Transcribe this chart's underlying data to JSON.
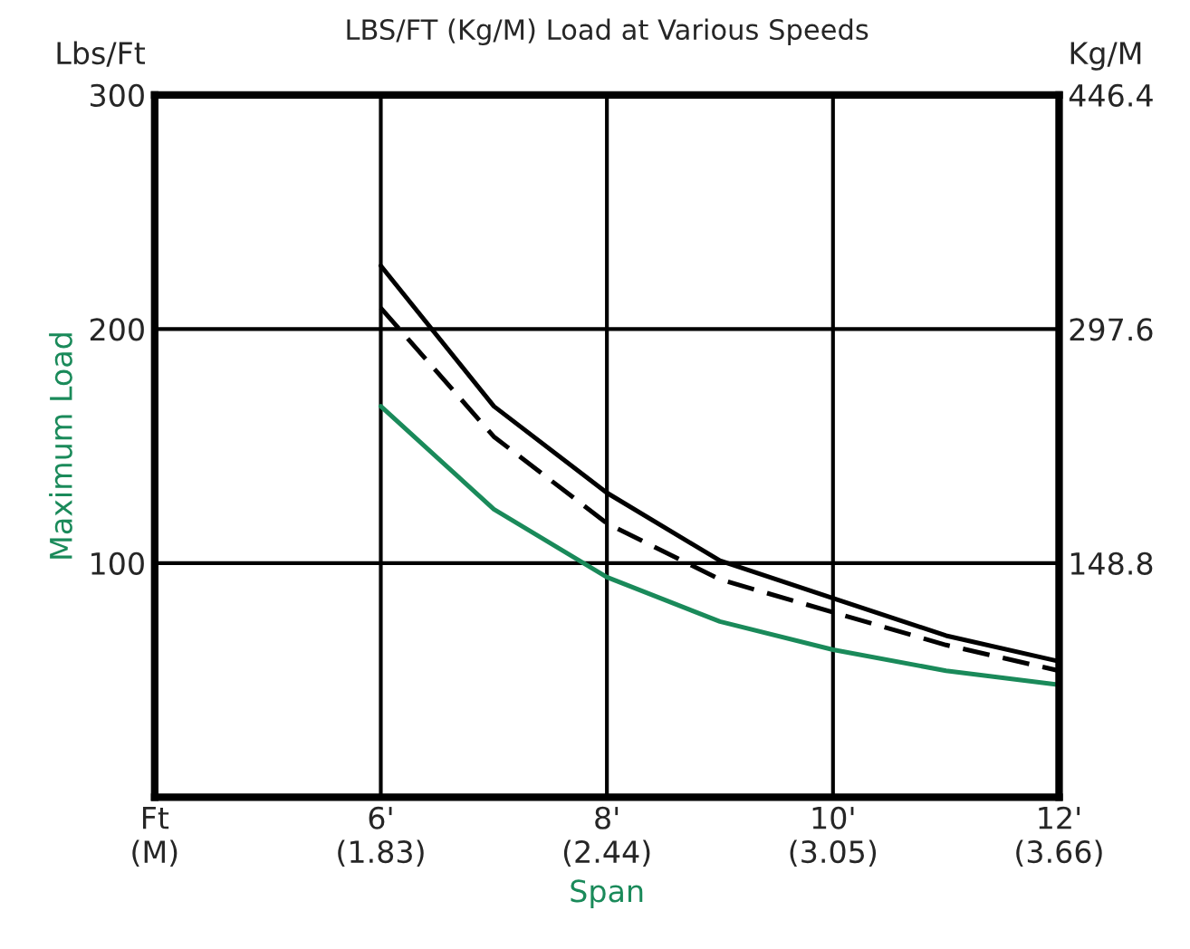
{
  "chart_data": {
    "type": "line",
    "title": "LBS/FT (Kg/M) Load at Various Speeds",
    "xlabel": "Span",
    "ylabel": "Maximum Load",
    "y2label": "Kg/M",
    "annotations": [
      "Lbs/Ft"
    ],
    "categories": [
      "Ft\n(M)",
      null,
      "6'\n(1.83)",
      null,
      "8'\n(2.44)",
      null,
      "10'\n(3.05)",
      null,
      "12'\n(3.66)"
    ],
    "series": [
      {
        "color": "#000000",
        "line_style": "solid",
        "values": [
          null,
          null,
          227,
          167,
          130,
          101,
          85,
          69,
          58
        ]
      },
      {
        "color": "#000000",
        "line_style": "dashed",
        "values": [
          null,
          null,
          209,
          154,
          117,
          93,
          79,
          65,
          54
        ]
      },
      {
        "color": "#1a8a5a",
        "line_style": "solid",
        "values": [
          null,
          null,
          167,
          123,
          94,
          75,
          63,
          54,
          48
        ]
      }
    ],
    "ylim": [
      0,
      300
    ],
    "yticks": [
      100,
      200,
      300
    ],
    "y2lim": [
      0,
      446.4
    ],
    "y2ticks": [
      148.8,
      297.6,
      446.4
    ],
    "grid": true,
    "marker": "none"
  }
}
